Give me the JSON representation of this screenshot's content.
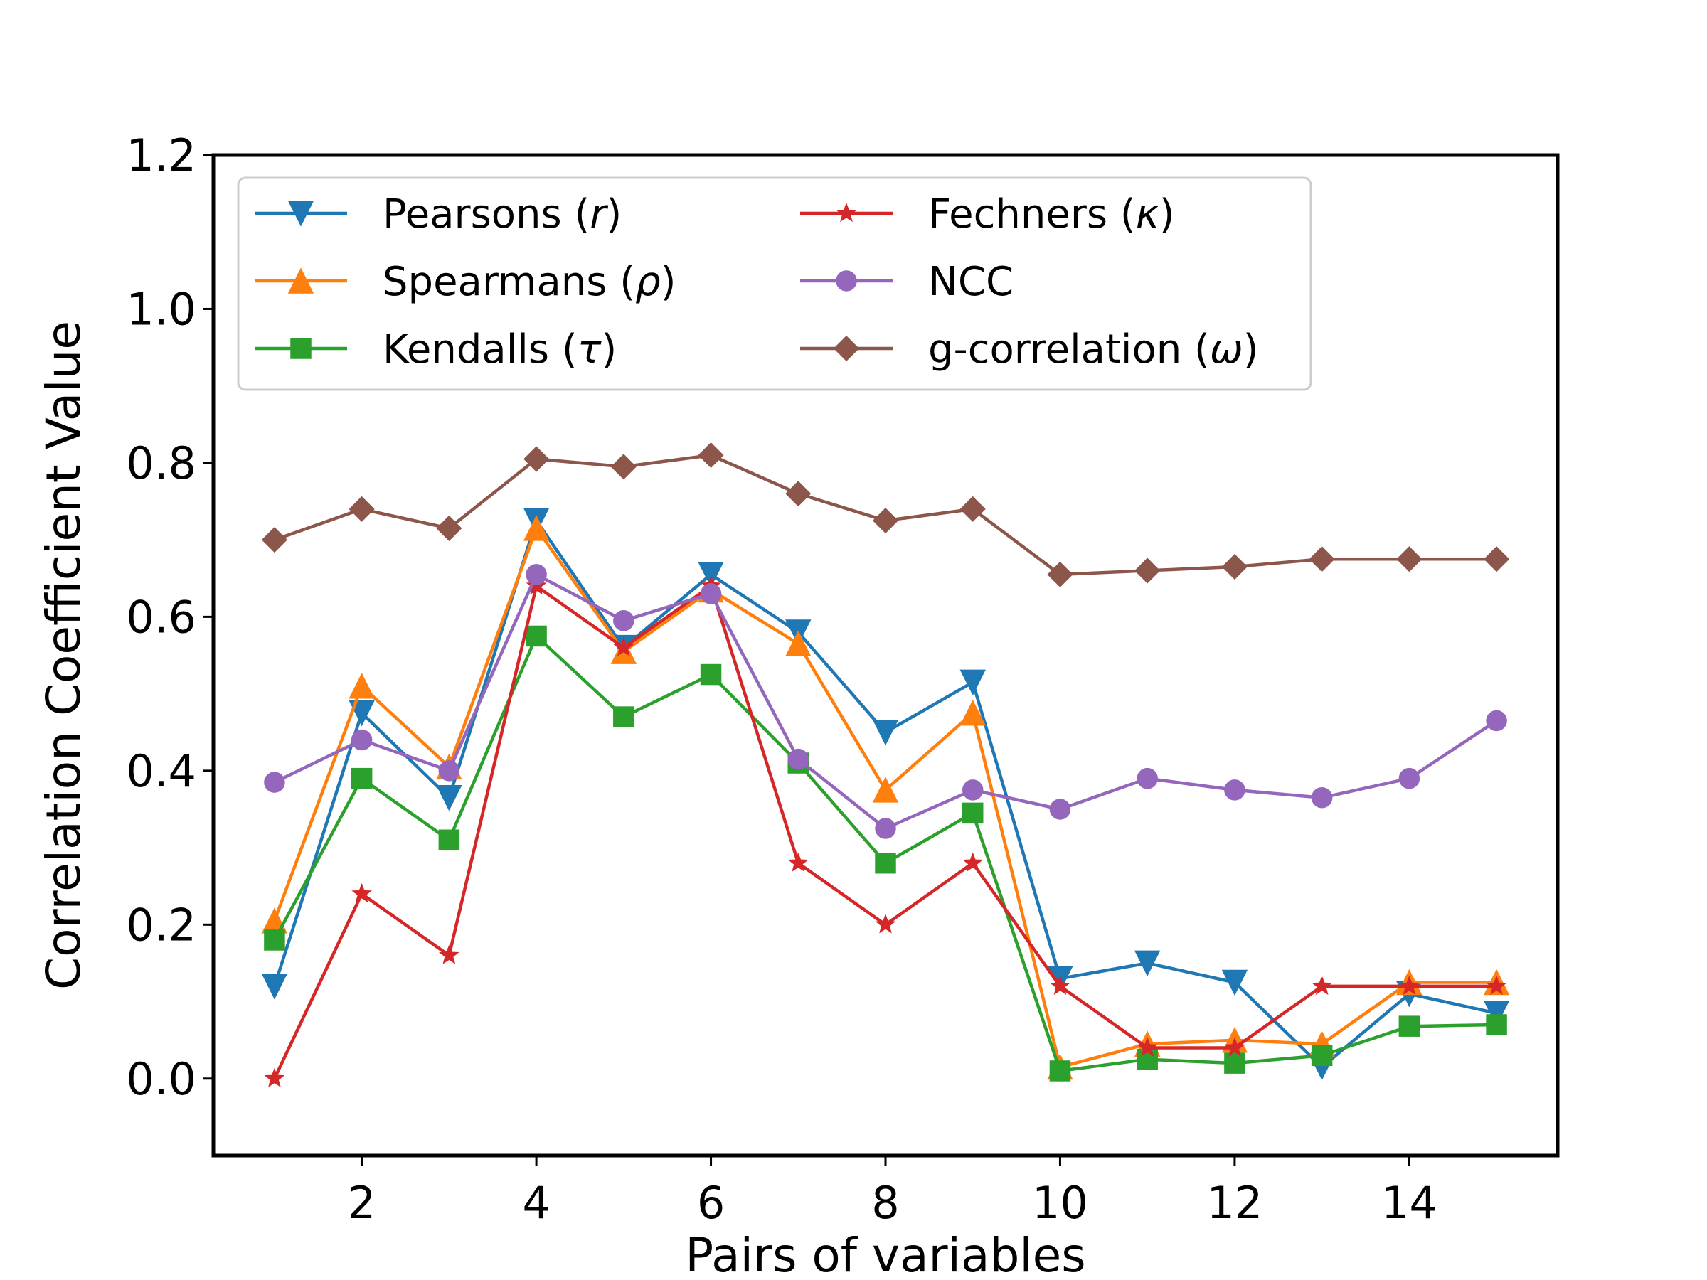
{
  "chart_data": {
    "type": "line",
    "title": "",
    "xlabel": "Pairs of variables",
    "ylabel": "Correlation Coefficient Value",
    "xlim": [
      0.3,
      15.7
    ],
    "ylim": [
      -0.1,
      1.2
    ],
    "xticks": [
      2,
      4,
      6,
      8,
      10,
      12,
      14
    ],
    "xtick_labels": [
      "2",
      "4",
      "6",
      "8",
      "10",
      "12",
      "14"
    ],
    "yticks": [
      0.0,
      0.2,
      0.4,
      0.6,
      0.8,
      1.0,
      1.2
    ],
    "ytick_labels": [
      "0.0",
      "0.2",
      "0.4",
      "0.6",
      "0.8",
      "1.0",
      "1.2"
    ],
    "grid": false,
    "legend_position": "top",
    "x": [
      1,
      2,
      3,
      4,
      5,
      6,
      7,
      8,
      9,
      10,
      11,
      12,
      13,
      14,
      15
    ],
    "series": [
      {
        "name": "Pearsons",
        "symbol": "r",
        "color": "#1f77b4",
        "marker": "triangle-down",
        "values": [
          0.12,
          0.475,
          0.365,
          0.725,
          0.56,
          0.655,
          0.58,
          0.45,
          0.515,
          0.13,
          0.15,
          0.125,
          0.015,
          0.11,
          0.085
        ]
      },
      {
        "name": "Spearmans",
        "symbol": "ρ",
        "color": "#ff7f0e",
        "marker": "triangle-up",
        "values": [
          0.205,
          0.51,
          0.405,
          0.715,
          0.555,
          0.635,
          0.565,
          0.375,
          0.475,
          0.015,
          0.045,
          0.05,
          0.045,
          0.125,
          0.125
        ]
      },
      {
        "name": "Kendalls",
        "symbol": "τ",
        "color": "#2ca02c",
        "marker": "square",
        "values": [
          0.18,
          0.39,
          0.31,
          0.575,
          0.47,
          0.525,
          0.41,
          0.28,
          0.345,
          0.01,
          0.025,
          0.02,
          0.03,
          0.068,
          0.07
        ]
      },
      {
        "name": "Fechners",
        "symbol": "κ",
        "color": "#d62728",
        "marker": "star",
        "values": [
          0.0,
          0.24,
          0.16,
          0.64,
          0.56,
          0.64,
          0.28,
          0.2,
          0.28,
          0.12,
          0.04,
          0.04,
          0.12,
          0.12,
          0.12
        ]
      },
      {
        "name": "NCC",
        "symbol": "",
        "color": "#9467bd",
        "marker": "circle",
        "values": [
          0.385,
          0.44,
          0.4,
          0.655,
          0.595,
          0.63,
          0.415,
          0.325,
          0.375,
          0.35,
          0.39,
          0.375,
          0.365,
          0.39,
          0.465
        ]
      },
      {
        "name": "g-correlation",
        "symbol": "ω",
        "color": "#8c564b",
        "marker": "diamond",
        "values": [
          0.7,
          0.74,
          0.715,
          0.805,
          0.795,
          0.81,
          0.76,
          0.725,
          0.74,
          0.655,
          0.66,
          0.665,
          0.675,
          0.675,
          0.675
        ]
      }
    ]
  }
}
